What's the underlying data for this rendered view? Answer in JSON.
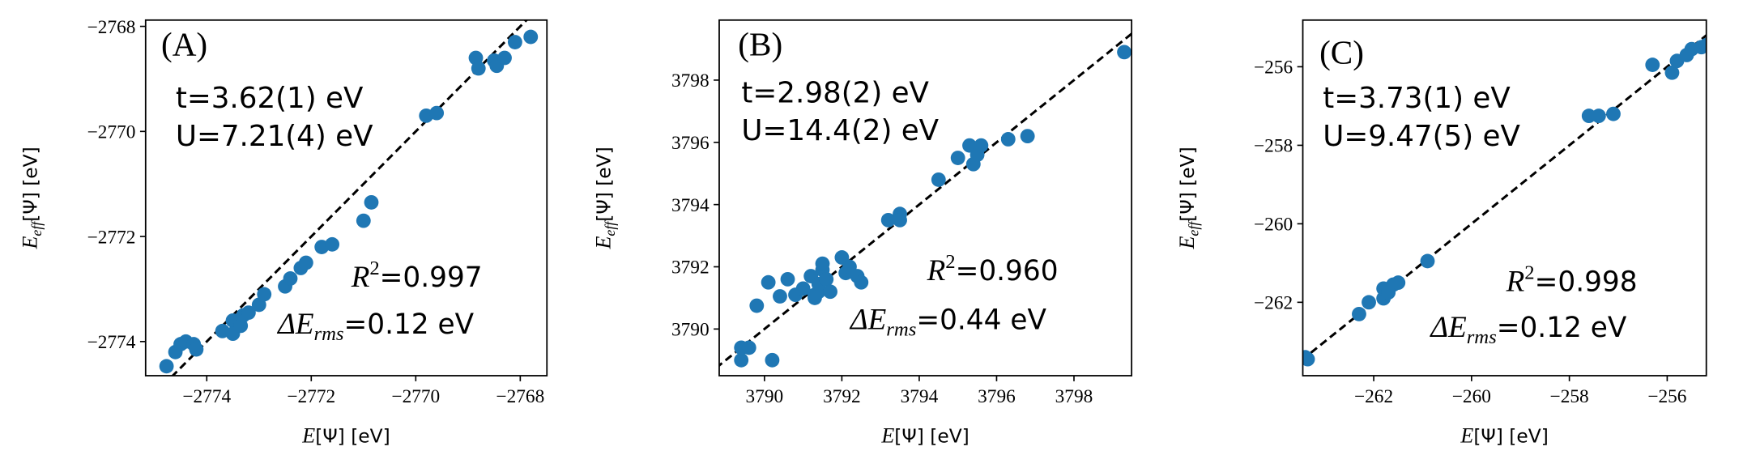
{
  "chart_data": [
    {
      "type": "scatter",
      "panel_label": "(A)",
      "annotations": [
        "t=3.62(1) eV",
        "U=7.21(4) eV"
      ],
      "r2": {
        "symbol": "R",
        "superscript": "2",
        "text": "=0.997"
      },
      "rms": {
        "symbol": "ΔE",
        "subscript": "rms",
        "text": "=0.12 eV"
      },
      "x_label": {
        "symbol": "E",
        "text": "[Ψ] [eV]"
      },
      "y_label": {
        "symbol": "E",
        "subscript": "eff",
        "text": "[Ψ] [eV]"
      },
      "color": "#1f77b4",
      "diagonal": true,
      "xlim": [
        -2775.17,
        -2767.49
      ],
      "ylim": [
        -2774.65,
        -2767.88
      ],
      "xticks": [
        {
          "value": -2774,
          "label": "−2774"
        },
        {
          "value": -2772,
          "label": "−2772"
        },
        {
          "value": -2770,
          "label": "−2770"
        },
        {
          "value": -2768,
          "label": "−2768"
        }
      ],
      "yticks": [
        {
          "value": -2774,
          "label": "−2774"
        },
        {
          "value": -2772,
          "label": "−2772"
        },
        {
          "value": -2770,
          "label": "−2770"
        },
        {
          "value": -2768,
          "label": "−2768"
        }
      ],
      "x": [
        -2774.77,
        -2774.6,
        -2774.5,
        -2774.4,
        -2774.25,
        -2774.2,
        -2773.7,
        -2773.5,
        -2773.5,
        -2773.35,
        -2773.3,
        -2773.2,
        -2773.0,
        -2772.9,
        -2772.5,
        -2772.4,
        -2772.2,
        -2772.1,
        -2771.8,
        -2771.6,
        -2771.0,
        -2770.85,
        -2769.8,
        -2769.6,
        -2768.85,
        -2768.8,
        -2768.5,
        -2768.45,
        -2768.3,
        -2768.1,
        -2767.8
      ],
      "values": [
        -2774.47,
        -2774.2,
        -2774.05,
        -2774.0,
        -2774.05,
        -2774.15,
        -2773.8,
        -2773.6,
        -2773.85,
        -2773.7,
        -2773.5,
        -2773.45,
        -2773.3,
        -2773.1,
        -2772.95,
        -2772.8,
        -2772.6,
        -2772.5,
        -2772.2,
        -2772.15,
        -2771.7,
        -2771.35,
        -2769.7,
        -2769.65,
        -2768.6,
        -2768.8,
        -2768.65,
        -2768.75,
        -2768.6,
        -2768.3,
        -2768.2
      ]
    },
    {
      "type": "scatter",
      "panel_label": "(B)",
      "annotations": [
        "t=2.98(2) eV",
        "U=14.4(2) eV"
      ],
      "r2": {
        "symbol": "R",
        "superscript": "2",
        "text": "=0.960"
      },
      "rms": {
        "symbol": "ΔE",
        "subscript": "rms",
        "text": "=0.44 eV"
      },
      "x_label": {
        "symbol": "E",
        "text": "[Ψ] [eV]"
      },
      "y_label": {
        "symbol": "E",
        "subscript": "eff",
        "text": "[Ψ] [eV]"
      },
      "color": "#1f77b4",
      "diagonal": true,
      "xlim": [
        3788.83,
        3799.49
      ],
      "ylim": [
        3788.5,
        3799.93
      ],
      "xticks": [
        3790,
        3792,
        3794,
        3796,
        3798
      ],
      "yticks": [
        3790,
        3792,
        3794,
        3796,
        3798
      ],
      "x": [
        3789.4,
        3789.4,
        3789.6,
        3789.8,
        3790.2,
        3790.1,
        3790.4,
        3790.6,
        3790.8,
        3791.0,
        3791.2,
        3791.3,
        3791.4,
        3791.4,
        3791.5,
        3791.5,
        3791.6,
        3791.7,
        3791.3,
        3792.0,
        3792.1,
        3792.2,
        3792.4,
        3792.5,
        3793.2,
        3793.5,
        3793.5,
        3794.5,
        3795.0,
        3795.3,
        3795.4,
        3795.5,
        3795.6,
        3796.3,
        3796.8,
        3799.3
      ],
      "values": [
        3789.0,
        3789.4,
        3789.4,
        3790.75,
        3789.0,
        3791.5,
        3791.05,
        3791.6,
        3791.1,
        3791.3,
        3791.7,
        3791.1,
        3791.2,
        3791.45,
        3791.9,
        3792.1,
        3791.6,
        3791.2,
        3791.0,
        3792.3,
        3791.8,
        3792.0,
        3791.7,
        3791.5,
        3793.5,
        3793.7,
        3793.5,
        3794.8,
        3795.5,
        3795.9,
        3795.3,
        3795.6,
        3795.9,
        3796.1,
        3796.2,
        3798.9
      ]
    },
    {
      "type": "scatter",
      "panel_label": "(C)",
      "annotations": [
        "t=3.73(1) eV",
        "U=9.47(5) eV"
      ],
      "r2": {
        "symbol": "R",
        "superscript": "2",
        "text": "=0.998"
      },
      "rms": {
        "symbol": "ΔE",
        "subscript": "rms",
        "text": "=0.12 eV"
      },
      "x_label": {
        "symbol": "E",
        "text": "[Ψ] [eV]"
      },
      "y_label": {
        "symbol": "E",
        "subscript": "eff",
        "text": "[Ψ] [eV]"
      },
      "color": "#1f77b4",
      "diagonal": true,
      "xlim": [
        -263.45,
        -255.2
      ],
      "ylim": [
        -263.87,
        -254.81
      ],
      "xticks": [
        {
          "value": -262,
          "label": "−262"
        },
        {
          "value": -260,
          "label": "−260"
        },
        {
          "value": -258,
          "label": "−258"
        },
        {
          "value": -256,
          "label": "−256"
        }
      ],
      "yticks": [
        {
          "value": -262,
          "label": "−262"
        },
        {
          "value": -260,
          "label": "−260"
        },
        {
          "value": -258,
          "label": "−258"
        },
        {
          "value": -256,
          "label": "−256"
        }
      ],
      "x": [
        -263.4,
        -263.35,
        -262.3,
        -262.1,
        -261.8,
        -261.8,
        -261.7,
        -261.6,
        -261.5,
        -260.9,
        -257.6,
        -257.4,
        -257.1,
        -256.3,
        -255.9,
        -255.8,
        -255.6,
        -255.5,
        -255.3,
        -255.2
      ],
      "values": [
        -263.4,
        -263.45,
        -262.3,
        -262.0,
        -261.9,
        -261.65,
        -261.75,
        -261.55,
        -261.5,
        -260.95,
        -257.25,
        -257.25,
        -257.2,
        -255.95,
        -256.15,
        -255.85,
        -255.7,
        -255.55,
        -255.5,
        -255.45
      ]
    }
  ]
}
